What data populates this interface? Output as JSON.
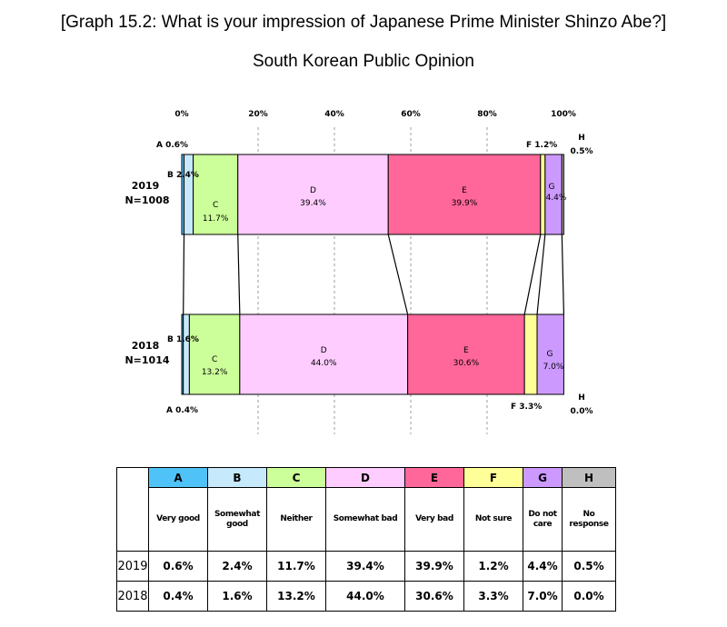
{
  "title": "[Graph 15.2: What is your impression of Japanese Prime Minister Shinzo Abe?]",
  "subtitle": "South Korean Public Opinion",
  "chart_data": {
    "type": "bar",
    "orientation": "horizontal-stacked-100",
    "xlim": [
      0,
      100
    ],
    "ticks": [
      "0%",
      "20%",
      "40%",
      "60%",
      "80%",
      "100%"
    ],
    "categories": [
      "2019\nN=1008",
      "2018\nN=1014"
    ],
    "row_labels": [
      {
        "year": "2019",
        "n": "N=1008"
      },
      {
        "year": "2018",
        "n": "N=1014"
      }
    ],
    "series": [
      {
        "name": "A",
        "color": "#4fc3f7",
        "values": [
          0.6,
          0.4
        ],
        "labels": [
          "0.6%",
          "0.4%"
        ]
      },
      {
        "name": "B",
        "color": "#c6e9fb",
        "values": [
          2.4,
          1.6
        ],
        "labels": [
          "2.4%",
          "1.6%"
        ]
      },
      {
        "name": "C",
        "color": "#ccff99",
        "values": [
          11.7,
          13.2
        ],
        "labels": [
          "11.7%",
          "13.2%"
        ]
      },
      {
        "name": "D",
        "color": "#ffccff",
        "values": [
          39.4,
          44.0
        ],
        "labels": [
          "39.4%",
          "44.0%"
        ]
      },
      {
        "name": "E",
        "color": "#ff6699",
        "values": [
          39.9,
          30.6
        ],
        "labels": [
          "39.9%",
          "30.6%"
        ]
      },
      {
        "name": "F",
        "color": "#ffff99",
        "values": [
          1.2,
          3.3
        ],
        "labels": [
          "1.2%",
          "3.3%"
        ]
      },
      {
        "name": "G",
        "color": "#cc99ff",
        "values": [
          4.4,
          7.0
        ],
        "labels": [
          "4.4%",
          "7.0%"
        ]
      },
      {
        "name": "H",
        "color": "#bfbfbf",
        "values": [
          0.5,
          0.0
        ],
        "labels": [
          "0.5%",
          "0.0%"
        ]
      }
    ]
  },
  "legend_table": {
    "headers": [
      "A",
      "B",
      "C",
      "D",
      "E",
      "F",
      "G",
      "H"
    ],
    "header_colors": [
      "#4fc3f7",
      "#c6e9fb",
      "#ccff99",
      "#ffccff",
      "#ff6699",
      "#ffff99",
      "#cc99ff",
      "#bfbfbf"
    ],
    "descriptions": [
      [
        "Very good"
      ],
      [
        "Somewhat",
        "good"
      ],
      [
        "Neither"
      ],
      [
        "Somewhat bad"
      ],
      [
        "Very bad"
      ],
      [
        "Not sure"
      ],
      [
        "Do not",
        "care"
      ],
      [
        "No",
        "response"
      ]
    ],
    "rows": [
      {
        "year": "2019",
        "values": [
          "0.6%",
          "2.4%",
          "11.7%",
          "39.4%",
          "39.9%",
          "1.2%",
          "4.4%",
          "0.5%"
        ]
      },
      {
        "year": "2018",
        "values": [
          "0.4%",
          "1.6%",
          "13.2%",
          "44.0%",
          "30.6%",
          "3.3%",
          "7.0%",
          "0.0%"
        ]
      }
    ]
  }
}
